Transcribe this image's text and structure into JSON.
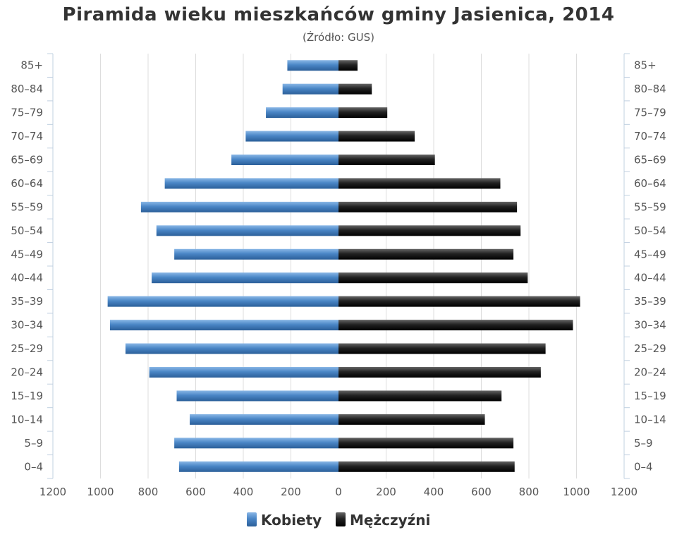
{
  "chart_data": {
    "type": "bar",
    "orientation": "horizontal-population-pyramid",
    "title": "Piramida wieku mieszkańców gminy Jasienica, 2014",
    "subtitle": "(Źródło: GUS)",
    "categories": [
      "0–4",
      "5–9",
      "10–14",
      "15–19",
      "20–24",
      "25–29",
      "30–34",
      "35–39",
      "40–44",
      "45–49",
      "50–54",
      "55–59",
      "60–64",
      "65–69",
      "70–74",
      "75–79",
      "80–84",
      "85+"
    ],
    "series": [
      {
        "name": "Kobiety",
        "color": "#4a86c6",
        "values": [
          670,
          690,
          625,
          680,
          795,
          895,
          960,
          970,
          785,
          690,
          765,
          830,
          730,
          450,
          390,
          305,
          235,
          215
        ]
      },
      {
        "name": "Mężczyźni",
        "color": "#222222",
        "values": [
          740,
          735,
          615,
          685,
          850,
          870,
          985,
          1015,
          795,
          735,
          765,
          750,
          680,
          405,
          320,
          205,
          140,
          80
        ]
      }
    ],
    "xlim": [
      -1200,
      1200
    ],
    "x_ticks": [
      "1200",
      "1000",
      "800",
      "600",
      "400",
      "200",
      "0",
      "200",
      "400",
      "600",
      "800",
      "1000",
      "1200"
    ],
    "grid": true,
    "legend_position": "bottom-center"
  }
}
